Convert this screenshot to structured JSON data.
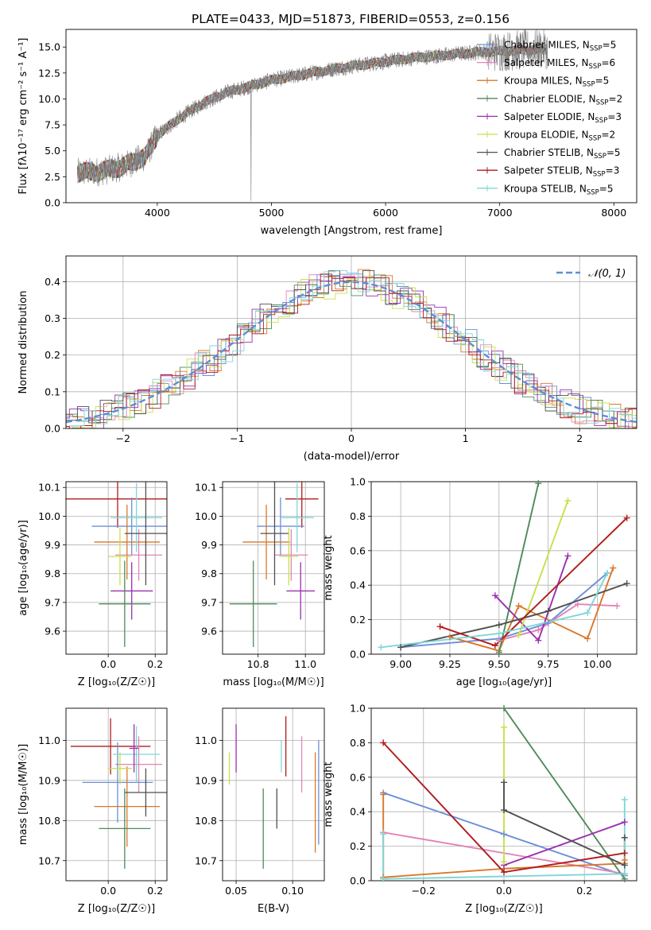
{
  "title": "PLATE=0433, MJD=51873, FIBERID=0553, z=0.156",
  "colors": {
    "chabrier_miles": "#6a8fd8",
    "salpeter_miles": "#e284b6",
    "kroupa_miles": "#d8782c",
    "chabrier_elodie": "#4f8a5a",
    "salpeter_elodie": "#9b2fb0",
    "kroupa_elodie": "#c8e04a",
    "chabrier_stelib": "#505050",
    "salpeter_stelib": "#b01c1c",
    "kroupa_stelib": "#7fd6d8",
    "data": "#808080",
    "normal": "#5b8fd6"
  },
  "chart_data": [
    {
      "id": "spectrum",
      "type": "line",
      "title": "PLATE=0433, MJD=51873, FIBERID=0553, z=0.156",
      "xlabel": "wavelength [Angstrom, rest frame]",
      "ylabel": "Flux [fλ10⁻¹⁷ erg cm⁻² s⁻¹ A⁻¹]",
      "xlim": [
        3200,
        8200
      ],
      "ylim": [
        0,
        16.7
      ],
      "xticks": [
        4000,
        5000,
        6000,
        7000,
        8000
      ],
      "yticks": [
        0.0,
        2.5,
        5.0,
        7.5,
        10.0,
        12.5,
        15.0
      ],
      "grid": false,
      "legend_position": "top-right",
      "legend": [
        {
          "key": "chabrier_miles",
          "label": "Chabrier MILES, N",
          "sub": "SSP",
          "tail": "=5"
        },
        {
          "key": "salpeter_miles",
          "label": "Salpeter MILES, N",
          "sub": "SSP",
          "tail": "=6"
        },
        {
          "key": "kroupa_miles",
          "label": "Kroupa MILES, N",
          "sub": "SSP",
          "tail": "=5"
        },
        {
          "key": "chabrier_elodie",
          "label": "Chabrier ELODIE, N",
          "sub": "SSP",
          "tail": "=2"
        },
        {
          "key": "salpeter_elodie",
          "label": "Salpeter ELODIE, N",
          "sub": "SSP",
          "tail": "=3"
        },
        {
          "key": "kroupa_elodie",
          "label": "Kroupa ELODIE, N",
          "sub": "SSP",
          "tail": "=2"
        },
        {
          "key": "chabrier_stelib",
          "label": "Chabrier STELIB, N",
          "sub": "SSP",
          "tail": "=5"
        },
        {
          "key": "salpeter_stelib",
          "label": "Salpeter STELIB, N",
          "sub": "SSP",
          "tail": "=3"
        },
        {
          "key": "kroupa_stelib",
          "label": "Kroupa STELIB, N",
          "sub": "SSP",
          "tail": "=5"
        }
      ],
      "continuum": {
        "x": [
          3300,
          3500,
          3700,
          3900,
          4000,
          4200,
          4400,
          4600,
          4800,
          5000,
          5200,
          5400,
          5600,
          5800,
          6000,
          6200,
          6400,
          6600,
          6800,
          7000,
          7200,
          7400
        ],
        "y": [
          2.9,
          3.0,
          3.5,
          4.5,
          6.5,
          8.2,
          9.6,
          10.6,
          11.2,
          11.8,
          12.2,
          12.6,
          13.0,
          13.3,
          13.6,
          13.9,
          14.1,
          14.3,
          14.5,
          14.6,
          14.7,
          14.8
        ]
      },
      "data_noise_amplitude": 0.8
    },
    {
      "id": "residuals",
      "type": "line",
      "xlabel": "(data-model)/error",
      "ylabel": "Normed distribution",
      "xlim": [
        -2.5,
        2.5
      ],
      "ylim": [
        0,
        0.47
      ],
      "xticks": [
        -2,
        -1,
        0,
        1,
        2
      ],
      "yticks": [
        0.0,
        0.1,
        0.2,
        0.3,
        0.4
      ],
      "grid": true,
      "legend_position": "top-right",
      "legend_label": "𝒩(0, 1)",
      "bin_width": 0.1,
      "histogram_scatter": 0.04
    },
    {
      "id": "z_vs_age",
      "type": "scatter",
      "xlabel": "Z [log₁₀(Z/Z☉)]",
      "ylabel": "age  [log₁₀(age/yr)]",
      "xlim": [
        -0.18,
        0.25
      ],
      "ylim": [
        9.52,
        10.12
      ],
      "xticks": [
        0.0,
        0.2
      ],
      "yticks": [
        9.6,
        9.7,
        9.8,
        9.9,
        10.0,
        10.1
      ],
      "grid": true,
      "points": [
        {
          "key": "salpeter_stelib",
          "x": 0.04,
          "xerr": 0.22,
          "y": 10.06,
          "yerr": 0.1
        },
        {
          "key": "salpeter_miles",
          "x": 0.13,
          "xerr": 0.1,
          "y": 9.865,
          "yerr": 0.09
        },
        {
          "key": "chabrier_miles",
          "x": 0.1,
          "xerr": 0.17,
          "y": 9.965,
          "yerr": 0.1
        },
        {
          "key": "kroupa_miles",
          "x": 0.08,
          "xerr": 0.14,
          "y": 9.91,
          "yerr": 0.13
        },
        {
          "key": "kroupa_stelib",
          "x": 0.12,
          "xerr": 0.11,
          "y": 9.995,
          "yerr": 0.12
        },
        {
          "key": "chabrier_stelib",
          "x": 0.16,
          "xerr": 0.09,
          "y": 9.94,
          "yerr": 0.18
        },
        {
          "key": "kroupa_elodie",
          "x": 0.05,
          "xerr": 0.05,
          "y": 9.86,
          "yerr": 0.1
        },
        {
          "key": "salpeter_elodie",
          "x": 0.1,
          "xerr": 0.09,
          "y": 9.74,
          "yerr": 0.1
        },
        {
          "key": "chabrier_elodie",
          "x": 0.07,
          "xerr": 0.11,
          "y": 9.695,
          "yerr": 0.15
        }
      ]
    },
    {
      "id": "mass_vs_age",
      "type": "scatter",
      "xlabel": "mass [log₁₀(M/M☉)]",
      "ylabel": "",
      "xlim": [
        10.65,
        11.08
      ],
      "ylim": [
        9.52,
        10.12
      ],
      "xticks": [
        10.8,
        11.0
      ],
      "yticks": [
        9.6,
        9.7,
        9.8,
        9.9,
        10.0,
        10.1
      ],
      "grid": true,
      "points": [
        {
          "key": "salpeter_stelib",
          "x": 10.985,
          "xerr": 0.07,
          "y": 10.06,
          "yerr": 0.1
        },
        {
          "key": "salpeter_miles",
          "x": 10.94,
          "xerr": 0.07,
          "y": 9.865,
          "yerr": 0.09
        },
        {
          "key": "chabrier_miles",
          "x": 10.895,
          "xerr": 0.1,
          "y": 9.965,
          "yerr": 0.1
        },
        {
          "key": "kroupa_miles",
          "x": 10.835,
          "xerr": 0.1,
          "y": 9.91,
          "yerr": 0.13
        },
        {
          "key": "kroupa_stelib",
          "x": 10.965,
          "xerr": 0.07,
          "y": 9.995,
          "yerr": 0.12
        },
        {
          "key": "chabrier_stelib",
          "x": 10.87,
          "xerr": 0.06,
          "y": 9.94,
          "yerr": 0.18
        },
        {
          "key": "kroupa_elodie",
          "x": 10.93,
          "xerr": 0.04,
          "y": 9.86,
          "yerr": 0.1
        },
        {
          "key": "salpeter_elodie",
          "x": 10.98,
          "xerr": 0.06,
          "y": 9.74,
          "yerr": 0.1
        },
        {
          "key": "chabrier_elodie",
          "x": 10.78,
          "xerr": 0.1,
          "y": 9.695,
          "yerr": 0.15
        }
      ]
    },
    {
      "id": "age_vs_weight",
      "type": "line",
      "xlabel": "age  [log₁₀(age/yr)]",
      "ylabel": "mass weight",
      "xlim": [
        8.85,
        10.2
      ],
      "ylim": [
        0,
        1
      ],
      "xticks": [
        9.0,
        9.25,
        9.5,
        9.75,
        10.0
      ],
      "yticks": [
        0.0,
        0.2,
        0.4,
        0.6,
        0.8,
        1.0
      ],
      "grid": true,
      "series": [
        {
          "key": "chabrier_miles",
          "x": [
            9.0,
            9.5,
            9.75,
            10.05
          ],
          "y": [
            0.04,
            0.09,
            0.18,
            0.47
          ]
        },
        {
          "key": "salpeter_miles",
          "x": [
            9.5,
            9.7,
            9.9,
            10.1
          ],
          "y": [
            0.08,
            0.14,
            0.29,
            0.28
          ]
        },
        {
          "key": "kroupa_miles",
          "x": [
            9.25,
            9.5,
            9.6,
            9.95,
            10.08
          ],
          "y": [
            0.1,
            0.02,
            0.28,
            0.09,
            0.5
          ]
        },
        {
          "key": "chabrier_elodie",
          "x": [
            9.5,
            9.7
          ],
          "y": [
            0.01,
            0.99
          ]
        },
        {
          "key": "salpeter_elodie",
          "x": [
            9.48,
            9.7,
            9.85
          ],
          "y": [
            0.34,
            0.08,
            0.57
          ]
        },
        {
          "key": "kroupa_elodie",
          "x": [
            9.6,
            9.85
          ],
          "y": [
            0.11,
            0.89
          ]
        },
        {
          "key": "chabrier_stelib",
          "x": [
            9.0,
            9.5,
            9.75,
            10.15
          ],
          "y": [
            0.04,
            0.17,
            0.25,
            0.41
          ]
        },
        {
          "key": "salpeter_stelib",
          "x": [
            9.2,
            9.48,
            10.15
          ],
          "y": [
            0.16,
            0.05,
            0.79
          ]
        },
        {
          "key": "kroupa_stelib",
          "x": [
            8.9,
            9.5,
            9.95,
            10.05
          ],
          "y": [
            0.04,
            0.12,
            0.24,
            0.47
          ]
        }
      ]
    },
    {
      "id": "z_vs_mass",
      "type": "scatter",
      "xlabel": "Z [log₁₀(Z/Z☉)]",
      "ylabel": "mass [log₁₀(M/M☉)]",
      "xlim": [
        -0.18,
        0.25
      ],
      "ylim": [
        10.65,
        11.08
      ],
      "xticks": [
        0.0,
        0.2
      ],
      "yticks": [
        10.7,
        10.8,
        10.9,
        11.0
      ],
      "grid": true,
      "points": [
        {
          "key": "salpeter_stelib",
          "x": 0.01,
          "xerr": 0.17,
          "y": 10.985,
          "yerr": 0.07
        },
        {
          "key": "salpeter_miles",
          "x": 0.13,
          "xerr": 0.1,
          "y": 10.94,
          "yerr": 0.07
        },
        {
          "key": "chabrier_miles",
          "x": 0.04,
          "xerr": 0.15,
          "y": 10.895,
          "yerr": 0.1
        },
        {
          "key": "kroupa_miles",
          "x": 0.08,
          "xerr": 0.14,
          "y": 10.835,
          "yerr": 0.1
        },
        {
          "key": "kroupa_stelib",
          "x": 0.12,
          "xerr": 0.1,
          "y": 10.965,
          "yerr": 0.07
        },
        {
          "key": "chabrier_stelib",
          "x": 0.16,
          "xerr": 0.09,
          "y": 10.87,
          "yerr": 0.06
        },
        {
          "key": "kroupa_elodie",
          "x": 0.05,
          "xerr": 0.05,
          "y": 10.93,
          "yerr": 0.04
        },
        {
          "key": "salpeter_elodie",
          "x": 0.11,
          "xerr": 0.02,
          "y": 10.98,
          "yerr": 0.06
        },
        {
          "key": "chabrier_elodie",
          "x": 0.07,
          "xerr": 0.11,
          "y": 10.78,
          "yerr": 0.1
        }
      ]
    },
    {
      "id": "ebv_vs_mass",
      "type": "scatter",
      "xlabel": "E(B-V)",
      "ylabel": "",
      "xlim": [
        0.038,
        0.128
      ],
      "ylim": [
        10.65,
        11.08
      ],
      "xticks": [
        0.05,
        0.1
      ],
      "yticks": [
        10.7,
        10.8,
        10.9,
        11.0
      ],
      "grid": true,
      "points": [
        {
          "key": "kroupa_elodie",
          "x": 0.044,
          "y": 10.93,
          "yerr": 0.04
        },
        {
          "key": "salpeter_elodie",
          "x": 0.05,
          "y": 10.98,
          "yerr": 0.06
        },
        {
          "key": "chabrier_elodie",
          "x": 0.074,
          "y": 10.78,
          "yerr": 0.1
        },
        {
          "key": "chabrier_stelib",
          "x": 0.086,
          "y": 10.83,
          "yerr": 0.05
        },
        {
          "key": "kroupa_stelib",
          "x": 0.09,
          "y": 10.96,
          "yerr": 0.04
        },
        {
          "key": "salpeter_stelib",
          "x": 0.094,
          "y": 10.985,
          "yerr": 0.075
        },
        {
          "key": "salpeter_miles",
          "x": 0.108,
          "y": 10.94,
          "yerr": 0.07
        },
        {
          "key": "kroupa_miles",
          "x": 0.12,
          "y": 10.845,
          "yerr": 0.125
        },
        {
          "key": "chabrier_miles",
          "x": 0.123,
          "y": 10.87,
          "yerr": 0.13
        }
      ]
    },
    {
      "id": "z_vs_weight",
      "type": "line",
      "xlabel": "Z [log₁₀(Z/Z☉)]",
      "ylabel": "mass weight",
      "xlim": [
        -0.33,
        0.33
      ],
      "ylim": [
        0,
        1
      ],
      "xticks": [
        -0.2,
        0.0,
        0.2
      ],
      "yticks": [
        0.0,
        0.2,
        0.4,
        0.6,
        0.8,
        1.0
      ],
      "grid": true,
      "series": [
        {
          "key": "chabrier_miles",
          "x": [
            -0.3,
            0.0,
            0.3
          ],
          "y": [
            0.51,
            0.27,
            0.03
          ]
        },
        {
          "key": "salpeter_miles",
          "x": [
            -0.3,
            0.3
          ],
          "y": [
            0.28,
            0.04
          ]
        },
        {
          "key": "kroupa_miles",
          "x": [
            -0.3,
            -0.3,
            0.0,
            0.3,
            0.3
          ],
          "y": [
            0.5,
            0.02,
            0.07,
            0.1,
            0.12
          ]
        },
        {
          "key": "chabrier_elodie",
          "x": [
            0.0,
            0.3
          ],
          "y": [
            1.0,
            0.01
          ]
        },
        {
          "key": "salpeter_elodie",
          "x": [
            0.0,
            0.3
          ],
          "y": [
            0.09,
            0.34
          ]
        },
        {
          "key": "kroupa_elodie",
          "x": [
            0.0,
            0.0
          ],
          "y": [
            0.89,
            0.11
          ]
        },
        {
          "key": "chabrier_stelib",
          "x": [
            0.0,
            0.0,
            0.3,
            0.3
          ],
          "y": [
            0.57,
            0.41,
            0.09,
            0.25
          ]
        },
        {
          "key": "salpeter_stelib",
          "x": [
            -0.3,
            0.0,
            0.3
          ],
          "y": [
            0.8,
            0.05,
            0.16
          ]
        },
        {
          "key": "kroupa_stelib",
          "x": [
            -0.3,
            -0.3,
            0.3,
            0.3
          ],
          "y": [
            0.27,
            0.01,
            0.04,
            0.47
          ]
        }
      ]
    }
  ]
}
